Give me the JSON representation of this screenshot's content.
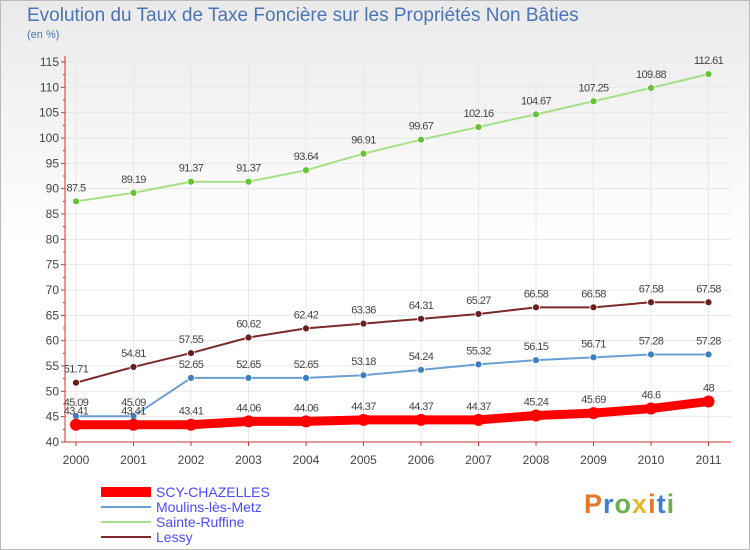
{
  "header": {
    "title": "Evolution du Taux de Taxe Foncière sur les Propriétés Non Bâties",
    "unit": "(en %)"
  },
  "logo": {
    "text": "Proxiti",
    "colors": [
      "#e8762b",
      "#3b7fd4",
      "#6ab04c",
      "#e8b82b"
    ]
  },
  "colors": {
    "axis": "#cc3333",
    "grid": "#e8e8e8",
    "label": "#444444"
  },
  "chart_data": {
    "type": "line",
    "x": [
      "2000",
      "2001",
      "2002",
      "2003",
      "2004",
      "2005",
      "2006",
      "2007",
      "2008",
      "2009",
      "2010",
      "2011"
    ],
    "ylim": [
      40,
      115
    ],
    "yticks": [
      40,
      45,
      50,
      55,
      60,
      65,
      70,
      75,
      80,
      85,
      90,
      95,
      100,
      105,
      110,
      115
    ],
    "ylabel": "",
    "xlabel": "",
    "grid": true,
    "legend": "bottom-left",
    "series": [
      {
        "name": "SCY-CHAZELLES",
        "color": "#ff0000",
        "point_color": "#ff0000",
        "values": [
          43.41,
          43.41,
          43.41,
          44.06,
          44.06,
          44.37,
          44.37,
          44.37,
          45.24,
          45.69,
          46.6,
          48
        ],
        "labels": [
          "43.41",
          "43.41",
          "43.41",
          "44.06",
          "44.06",
          "44.37",
          "44.37",
          "44.37",
          "45.24",
          "45.69",
          "46.6",
          "48"
        ]
      },
      {
        "name": "Moulins-lès-Metz",
        "color": "#6a9fd4",
        "point_color": "#3f7fc0",
        "values": [
          45.09,
          45.09,
          52.65,
          52.65,
          52.65,
          53.18,
          54.24,
          55.32,
          56.15,
          56.71,
          57.28,
          57.28
        ],
        "labels": [
          "45.09",
          "45.09",
          "52.65",
          "52.65",
          "52.65",
          "53.18",
          "54.24",
          "55.32",
          "56.15",
          "56.71",
          "57.28",
          "57.28"
        ]
      },
      {
        "name": "Sainte-Ruffine",
        "color": "#a6e086",
        "point_color": "#66c433",
        "values": [
          87.5,
          89.19,
          91.37,
          91.37,
          93.64,
          96.91,
          99.67,
          102.16,
          104.67,
          107.25,
          109.88,
          112.61
        ],
        "labels": [
          "87.5",
          "89.19",
          "91.37",
          "91.37",
          "93.64",
          "96.91",
          "99.67",
          "102.16",
          "104.67",
          "107.25",
          "109.88",
          "112.61"
        ]
      },
      {
        "name": "Lessy",
        "color": "#7a2a2a",
        "point_color": "#6b1f1f",
        "values": [
          51.71,
          54.81,
          57.55,
          60.62,
          62.42,
          63.36,
          64.31,
          65.27,
          66.58,
          66.58,
          67.58,
          67.58
        ],
        "labels": [
          "51.71",
          "54.81",
          "57.55",
          "60.62",
          "62.42",
          "63.36",
          "64.31",
          "65.27",
          "66.58",
          "66.58",
          "67.58",
          "67.58"
        ]
      }
    ]
  }
}
